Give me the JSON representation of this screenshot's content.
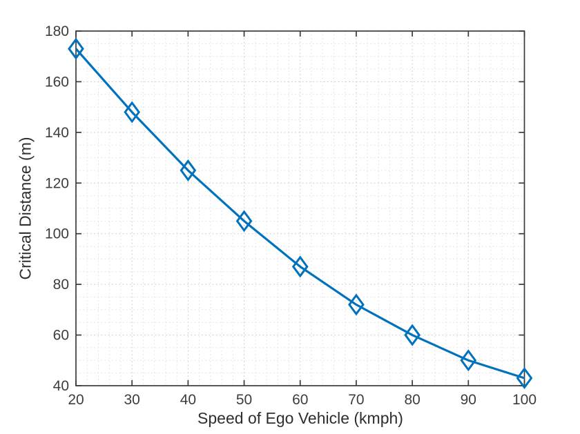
{
  "chart_data": {
    "type": "line",
    "title": "",
    "xlabel": "Speed of Ego Vehicle (kmph)",
    "ylabel": "Critical Distance (m)",
    "x": [
      20,
      30,
      40,
      50,
      60,
      70,
      80,
      90,
      100
    ],
    "values": [
      173,
      148,
      125,
      105,
      87,
      72,
      60,
      50,
      43
    ],
    "xlim": [
      20,
      100
    ],
    "ylim": [
      40,
      180
    ],
    "xticks": [
      20,
      30,
      40,
      50,
      60,
      70,
      80,
      90,
      100
    ],
    "yticks": [
      40,
      60,
      80,
      100,
      120,
      140,
      160,
      180
    ],
    "x_major_step": 10,
    "y_major_step": 20,
    "x_minor_step": 2,
    "y_minor_step": 5,
    "grid": true,
    "minor_grid": true,
    "grid_style": "dotted",
    "legend_position": "none",
    "marker": "diamond",
    "marker_fill": "none",
    "line_color": "#0072BD",
    "axis_color": "#3a3a3a",
    "tick_label_color": "#3d3d3d",
    "major_grid_color": "#c9c9c9",
    "minor_grid_color": "#e2e2e2",
    "background": "#ffffff"
  }
}
